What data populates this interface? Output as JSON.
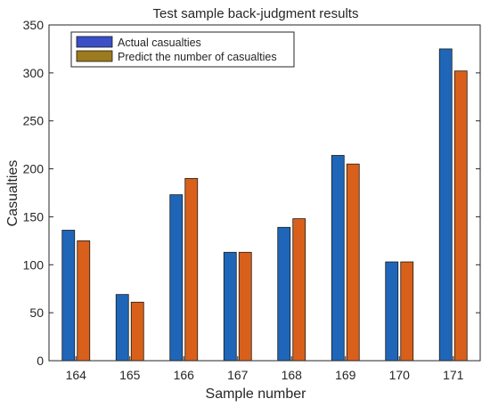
{
  "chart_data": {
    "type": "bar",
    "title": "Test sample back-judgment results",
    "xlabel": "Sample number",
    "ylabel": "Casualties",
    "categories": [
      "164",
      "165",
      "166",
      "167",
      "168",
      "169",
      "170",
      "171"
    ],
    "series": [
      {
        "name": "Actual casualties",
        "values": [
          136,
          69,
          173,
          113,
          139,
          214,
          103,
          325
        ],
        "color": "#1f66b8"
      },
      {
        "name": "Predict the number of casualties",
        "values": [
          125,
          61,
          190,
          113,
          148,
          205,
          103,
          302
        ],
        "color": "#d9601a"
      }
    ],
    "legend_colors": {
      "Actual casualties": "#3b4fc7",
      "Predict the number of casualties": "#9c7a1e"
    },
    "yticks": [
      "0",
      "50",
      "100",
      "150",
      "200",
      "250",
      "300",
      "350"
    ],
    "ylim": [
      0,
      350
    ],
    "grid": false,
    "legend_position": "top-left"
  }
}
